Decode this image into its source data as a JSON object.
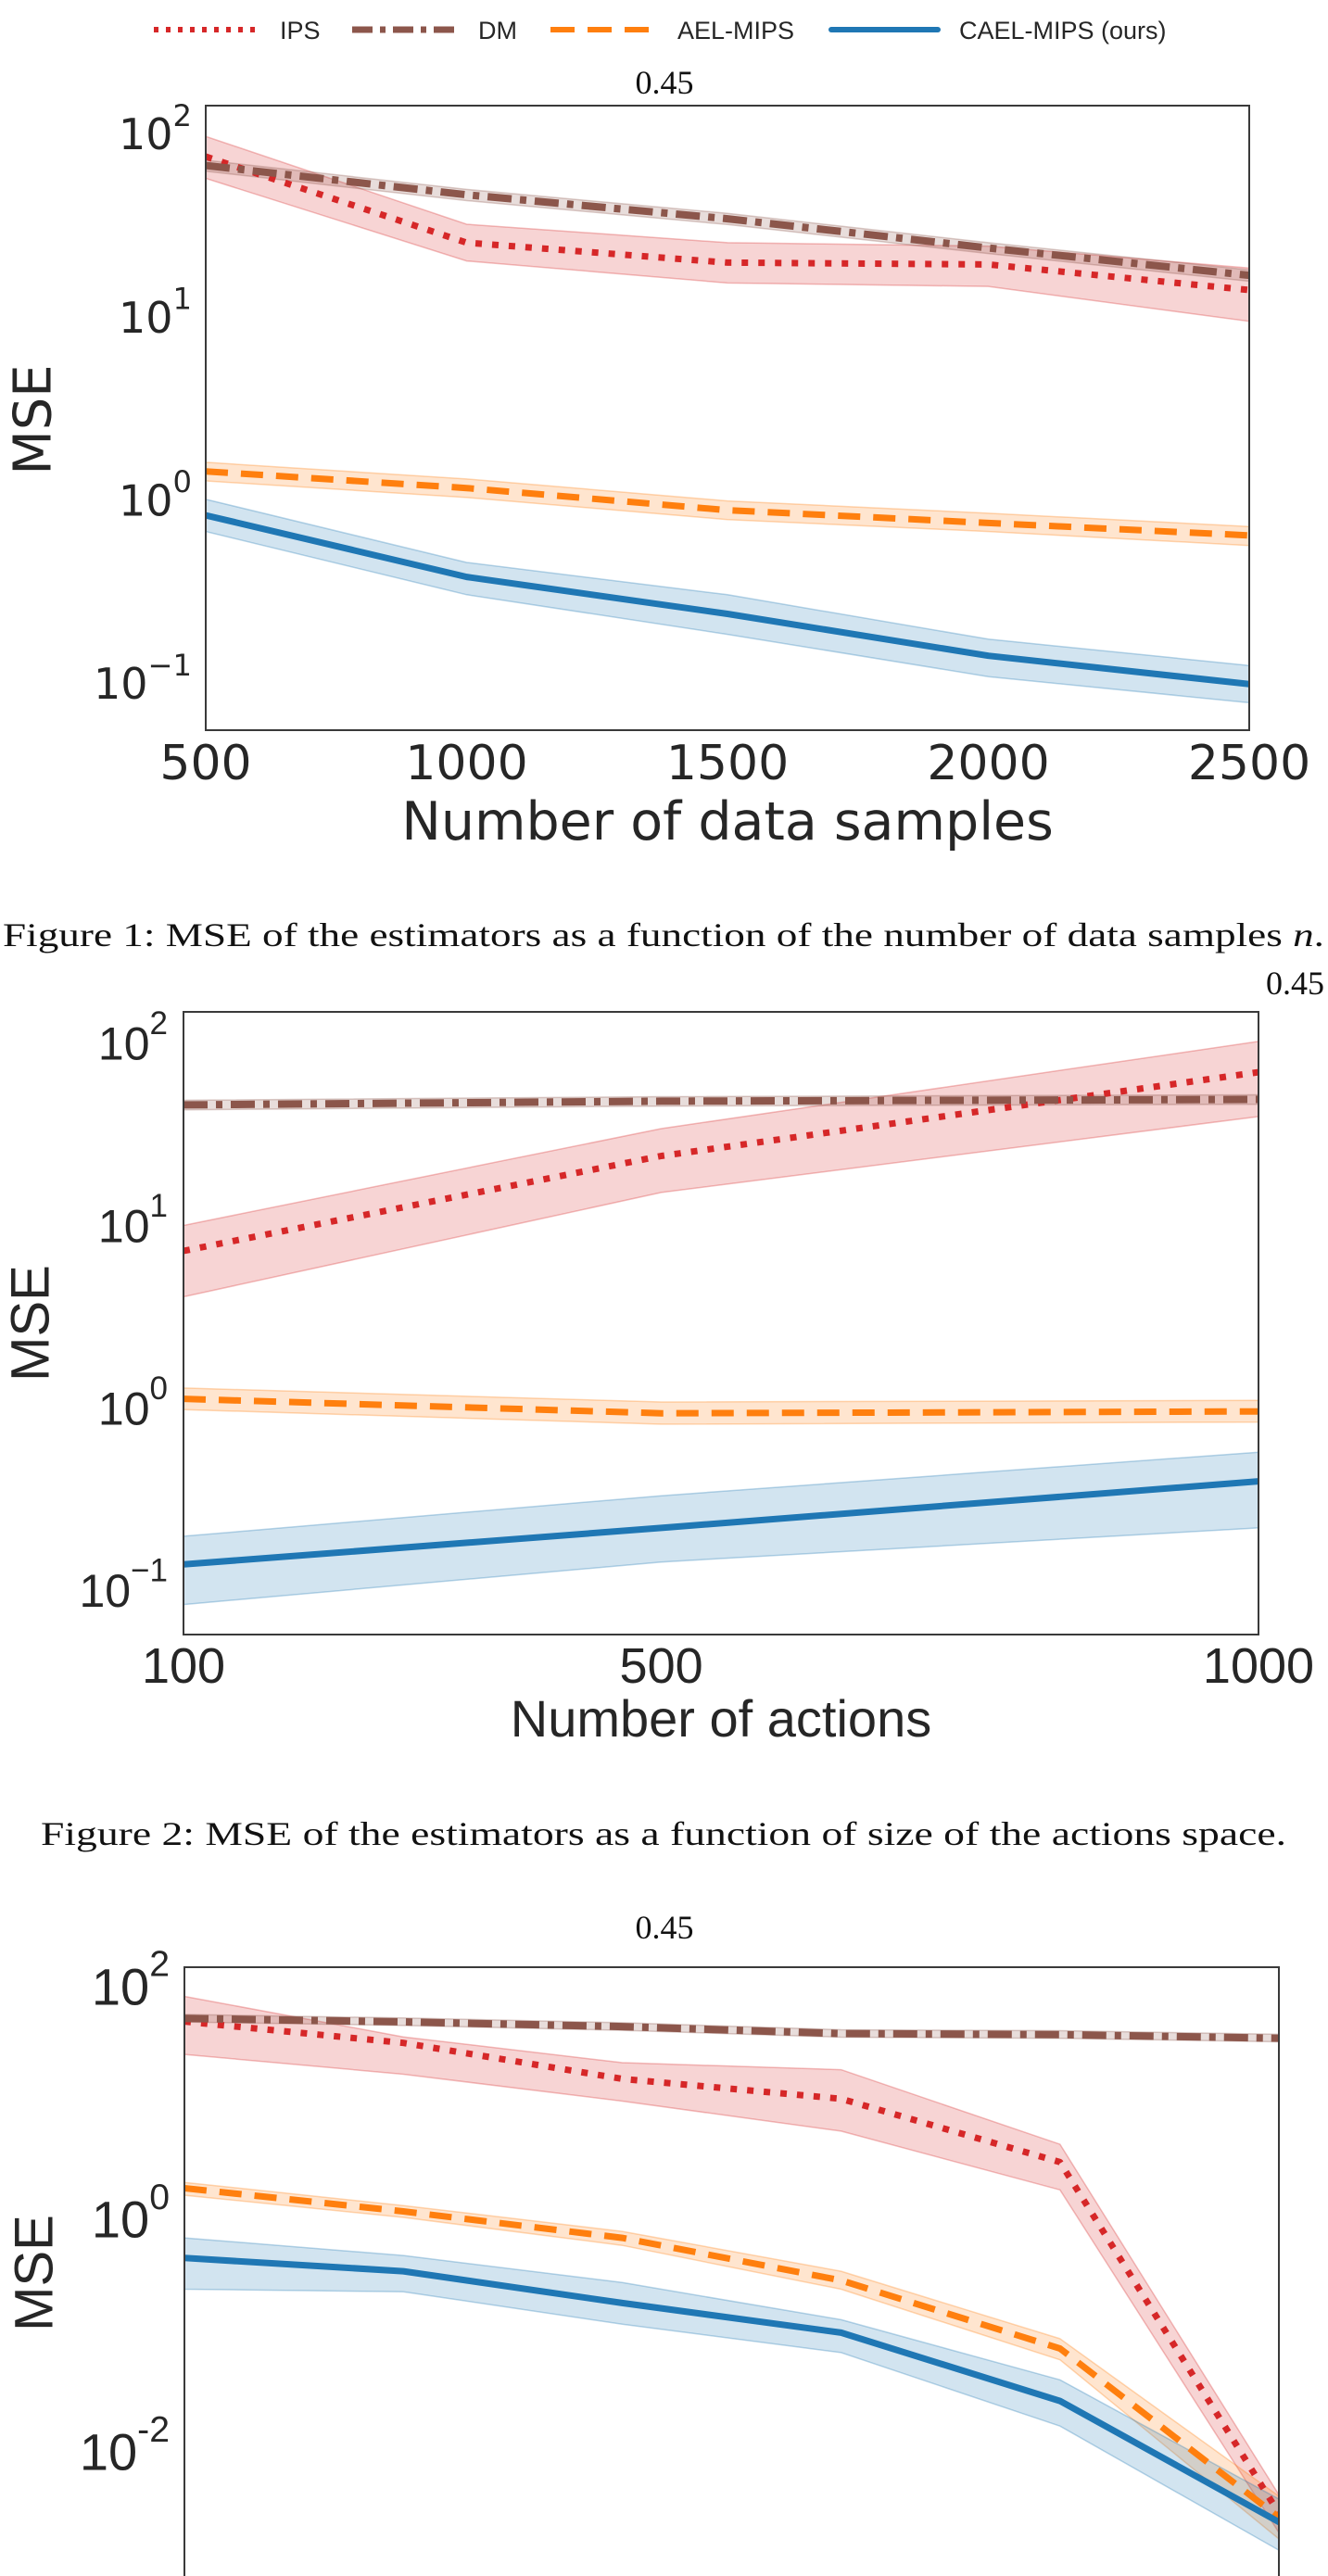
{
  "legend": {
    "placement": "top-center",
    "entries": [
      {
        "label": "IPS",
        "color": "#d62728",
        "style": "dotted"
      },
      {
        "label": "DM",
        "color": "#8c564b",
        "style": "dash-dot"
      },
      {
        "label": "AEL-MIPS",
        "color": "#ff7f0e",
        "style": "dashed"
      },
      {
        "label": "CAEL-MIPS (ours)",
        "color": "#1f77b4",
        "style": "solid"
      }
    ]
  },
  "captions": [
    {
      "prefix": "Figure 1: MSE of the estimators as a function of the number of data samples ",
      "variable": "n",
      "suffix": "."
    },
    {
      "prefix": "Figure 2: MSE of the estimators as a function of size of the actions space.",
      "variable": "",
      "suffix": ""
    }
  ],
  "chart_data": [
    {
      "type": "line",
      "title": "0.45",
      "xlabel": "Number of data samples",
      "ylabel": "MSE",
      "yscale": "log",
      "grid": false,
      "x": [
        500,
        1000,
        1500,
        2000,
        2500
      ],
      "xlim": [
        500,
        2500
      ],
      "xticks": [
        500,
        1000,
        1500,
        2000,
        2500
      ],
      "xtick_labels": [
        "500",
        "1000",
        "1500",
        "2000",
        "2500"
      ],
      "ylim": [
        0.051,
        131
      ],
      "yticks": [
        100,
        10,
        1,
        0.1
      ],
      "ytick_labels": [
        "10^2",
        "10^1",
        "10^0",
        "10^−1"
      ],
      "series": [
        {
          "name": "IPS",
          "values": [
            69,
            23.4,
            18.2,
            17.8,
            12.9
          ],
          "upper": [
            89,
            29.5,
            23.4,
            22.4,
            17
          ],
          "lower": [
            52.5,
            18.6,
            14.1,
            13.5,
            8.7
          ]
        },
        {
          "name": "DM",
          "values": [
            61.7,
            42.7,
            31.6,
            21.9,
            15.5
          ],
          "upper": [
            66,
            45.7,
            33.8,
            23.4,
            16.6
          ],
          "lower": [
            57.4,
            39.7,
            29.4,
            20.4,
            14.4
          ]
        },
        {
          "name": "AEL-MIPS",
          "values": [
            1.32,
            1.07,
            0.81,
            0.69,
            0.59
          ],
          "upper": [
            1.48,
            1.2,
            0.91,
            0.78,
            0.66
          ],
          "lower": [
            1.17,
            0.95,
            0.72,
            0.62,
            0.52
          ]
        },
        {
          "name": "CAEL-MIPS (ours)",
          "values": [
            0.76,
            0.35,
            0.22,
            0.13,
            0.091
          ],
          "upper": [
            0.93,
            0.42,
            0.28,
            0.16,
            0.115
          ],
          "lower": [
            0.62,
            0.28,
            0.17,
            0.1,
            0.072
          ]
        }
      ]
    },
    {
      "type": "line",
      "title": "0.45",
      "xlabel": "Number of actions",
      "ylabel": "MSE",
      "yscale": "log",
      "grid": false,
      "x": [
        100,
        500,
        1000
      ],
      "xlim": [
        100,
        1000
      ],
      "xticks": [
        100,
        500,
        1000
      ],
      "xtick_labels": [
        "100",
        "500",
        "1000"
      ],
      "ylim": [
        0.052,
        135
      ],
      "yticks": [
        100,
        10,
        1,
        0.1
      ],
      "ytick_labels": [
        "10^2",
        "10^1",
        "10^0",
        "10^−1"
      ],
      "series": [
        {
          "name": "IPS",
          "values": [
            6.6,
            21.9,
            63
          ],
          "upper": [
            9.1,
            30.9,
            93
          ],
          "lower": [
            3.7,
            13.8,
            36
          ]
        },
        {
          "name": "DM",
          "values": [
            41.7,
            43.7,
            44.7
          ],
          "upper": [
            44.2,
            46.3,
            47.4
          ],
          "lower": [
            39.2,
            41.1,
            42
          ]
        },
        {
          "name": "AEL-MIPS",
          "values": [
            1.02,
            0.85,
            0.87
          ],
          "upper": [
            1.17,
            0.98,
            1.0
          ],
          "lower": [
            0.89,
            0.74,
            0.76
          ]
        },
        {
          "name": "CAEL-MIPS (ours)",
          "values": [
            0.126,
            0.2,
            0.36
          ],
          "upper": [
            0.18,
            0.3,
            0.52
          ],
          "lower": [
            0.076,
            0.13,
            0.2
          ]
        }
      ]
    },
    {
      "type": "line",
      "title": "0.45",
      "xlabel": "",
      "ylabel": "MSE",
      "yscale": "log",
      "grid": false,
      "x": [
        1,
        2,
        3,
        4,
        5,
        6
      ],
      "xlim": [
        1,
        6
      ],
      "xticks": [],
      "xtick_labels": [],
      "ylim": [
        0.0006,
        123
      ],
      "yticks": [
        100,
        1,
        0.01
      ],
      "ytick_labels": [
        "10^2",
        "10^0",
        "10^-2"
      ],
      "series": [
        {
          "name": "IPS",
          "values": [
            42,
            27.5,
            13.5,
            9.1,
            2.6,
            0.0025
          ],
          "upper": [
            69,
            31,
            18.6,
            16.2,
            3.7,
            0.0036
          ],
          "lower": [
            21.9,
            14.8,
            8.7,
            4.8,
            1.5,
            0.0017
          ]
        },
        {
          "name": "DM",
          "values": [
            44.7,
            41.7,
            38,
            33.1,
            32.4,
            30.2
          ],
          "upper": [
            48.3,
            45,
            41,
            35.7,
            35,
            32.6
          ],
          "lower": [
            41.6,
            38.8,
            35.3,
            30.8,
            30.1,
            28.1
          ]
        },
        {
          "name": "AEL-MIPS",
          "values": [
            1.55,
            0.98,
            0.58,
            0.25,
            0.065,
            0.0023
          ],
          "upper": [
            1.74,
            1.1,
            0.66,
            0.3,
            0.079,
            0.0035
          ],
          "lower": [
            1.35,
            0.87,
            0.5,
            0.21,
            0.052,
            0.0015
          ]
        },
        {
          "name": "CAEL-MIPS (ours)",
          "values": [
            0.39,
            0.3,
            0.16,
            0.089,
            0.023,
            0.0021
          ],
          "upper": [
            0.58,
            0.41,
            0.24,
            0.115,
            0.035,
            0.0033
          ],
          "lower": [
            0.21,
            0.2,
            0.105,
            0.06,
            0.014,
            0.0012
          ]
        }
      ]
    }
  ]
}
